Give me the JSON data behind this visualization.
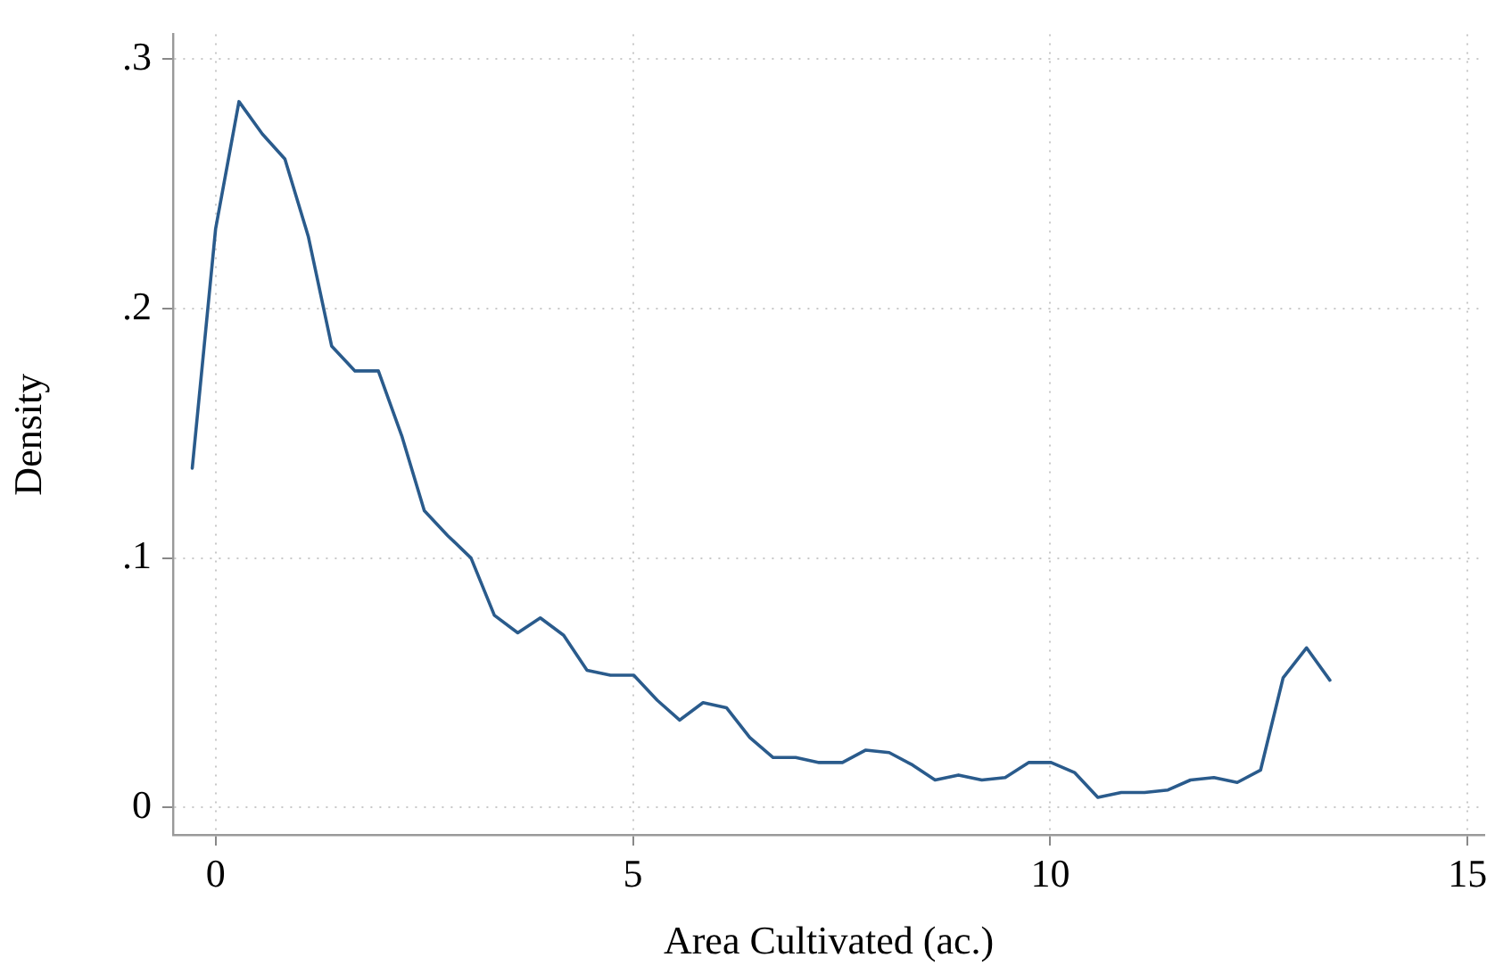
{
  "chart_data": {
    "type": "line",
    "xlabel": "Area Cultivated (ac.)",
    "ylabel": "Density",
    "x": [
      -0.28,
      0.0,
      0.28,
      0.56,
      0.83,
      1.11,
      1.39,
      1.67,
      1.95,
      2.23,
      2.5,
      2.78,
      3.06,
      3.34,
      3.62,
      3.89,
      4.17,
      4.45,
      4.73,
      5.01,
      5.29,
      5.56,
      5.84,
      6.12,
      6.4,
      6.68,
      6.95,
      7.23,
      7.51,
      7.79,
      8.07,
      8.35,
      8.62,
      8.9,
      9.18,
      9.46,
      9.74,
      10.01,
      10.29,
      10.57,
      10.85,
      11.13,
      11.41,
      11.68,
      11.96,
      12.24,
      12.52,
      12.79,
      13.07,
      13.35
    ],
    "series": [
      {
        "color": "#2a5b8c",
        "values": [
          0.136,
          0.232,
          0.283,
          0.27,
          0.26,
          0.229,
          0.185,
          0.175,
          0.175,
          0.149,
          0.119,
          0.109,
          0.1,
          0.077,
          0.07,
          0.076,
          0.069,
          0.055,
          0.053,
          0.053,
          0.043,
          0.035,
          0.042,
          0.04,
          0.028,
          0.02,
          0.02,
          0.018,
          0.018,
          0.023,
          0.022,
          0.017,
          0.011,
          0.013,
          0.011,
          0.012,
          0.018,
          0.018,
          0.014,
          0.004,
          0.006,
          0.006,
          0.007,
          0.011,
          0.012,
          0.01,
          0.015,
          0.052,
          0.064,
          0.051
        ]
      }
    ],
    "xlim": [
      -0.51,
      15.2
    ],
    "ylim": [
      -0.011,
      0.31
    ],
    "xticks": [
      0,
      5,
      10,
      15
    ],
    "yticks": [
      {
        "value": 0,
        "label": "0"
      },
      {
        "value": 0.1,
        "label": ".1"
      },
      {
        "value": 0.2,
        "label": ".2"
      },
      {
        "value": 0.3,
        "label": ".3"
      }
    ],
    "grid": true,
    "legend": false,
    "marker": "none",
    "line_style": "solid"
  }
}
